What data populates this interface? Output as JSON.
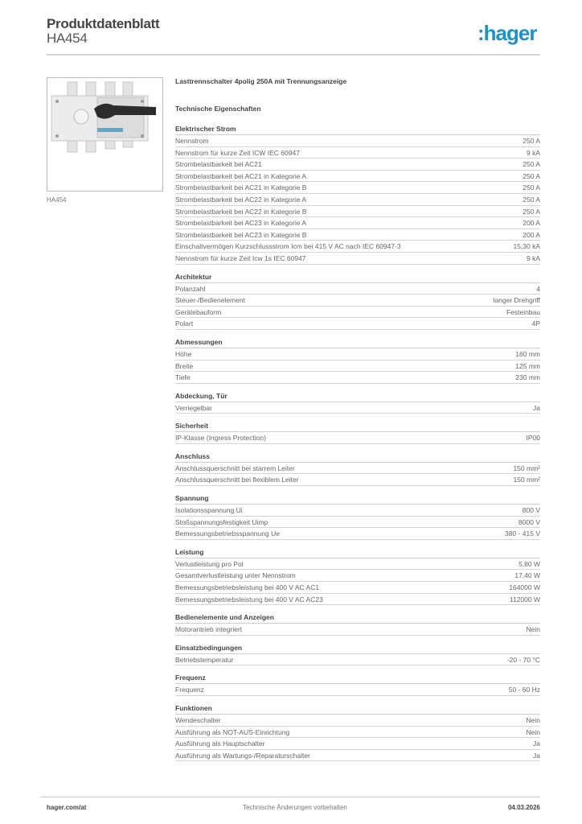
{
  "header": {
    "title": "Produktdatenblatt",
    "subtitle": "HA454",
    "logo": ":hager"
  },
  "product": {
    "image_caption": "HA454",
    "title": "Lasttrennschalter 4polig 250A mit Trennungsanzeige",
    "section_heading": "Technische Eigenschaften"
  },
  "sections": [
    {
      "title": "Elektrischer Strom",
      "rows": [
        {
          "label": "Nennstrom",
          "value": "250 A"
        },
        {
          "label": "Nennstrom für kurze Zeit ICW IEC 60947",
          "value": "9 kA"
        },
        {
          "label": "Strombelastbarkeit bei AC21",
          "value": "250 A"
        },
        {
          "label": "Strombelastbarkeit bei AC21 in Kategorie A",
          "value": "250 A"
        },
        {
          "label": "Strombelastbarkeit bei AC21 in Kategorie B",
          "value": "250 A"
        },
        {
          "label": "Strombelastbarkeit bei AC22 in Kategorie A",
          "value": "250 A"
        },
        {
          "label": "Strombelastbarkeit bei AC22 in Kategorie B",
          "value": "250 A"
        },
        {
          "label": "Strombelastbarkeit bei AC23 in Kategorie A",
          "value": "200 A"
        },
        {
          "label": "Strombelastbarkeit bei AC23 in Kategorie B",
          "value": "200 A"
        },
        {
          "label": "Einschaltvermögen Kurzschlussstrom Icm bei 415 V AC nach IEC 60947-3",
          "value": "15,30 kA"
        },
        {
          "label": "Nennstrom für kurze Zeit Icw 1s IEC 60947",
          "value": "9 kA"
        }
      ]
    },
    {
      "title": "Architektur",
      "rows": [
        {
          "label": "Polanzahl",
          "value": "4"
        },
        {
          "label": "Steuer-/Bedienelement",
          "value": "langer Drehgriff"
        },
        {
          "label": "Gerätebauform",
          "value": "Festeinbau"
        },
        {
          "label": "Polart",
          "value": "4P"
        }
      ]
    },
    {
      "title": "Abmessungen",
      "rows": [
        {
          "label": "Höhe",
          "value": "160 mm"
        },
        {
          "label": "Breite",
          "value": "125 mm"
        },
        {
          "label": "Tiefe",
          "value": "230 mm"
        }
      ]
    },
    {
      "title": "Abdeckung, Tür",
      "rows": [
        {
          "label": "Verriegelbar",
          "value": "Ja"
        }
      ]
    },
    {
      "title": "Sicherheit",
      "rows": [
        {
          "label": "IP-Klasse (Ingress Protection)",
          "value": "IP00"
        }
      ]
    },
    {
      "title": "Anschluss",
      "rows": [
        {
          "label": "Anschlussquerschnitt bei starrem Leiter",
          "value": "150 mm²"
        },
        {
          "label": "Anschlussquerschnitt bei flexiblem Leiter",
          "value": "150 mm²"
        }
      ]
    },
    {
      "title": "Spannung",
      "rows": [
        {
          "label": "Isolationsspannung Ui",
          "value": "800 V"
        },
        {
          "label": "Stoßspannungsfestigkeit Uimp",
          "value": "8000 V"
        },
        {
          "label": "Bemessungsbetriebsspannung Ue",
          "value": "380 - 415 V"
        }
      ]
    },
    {
      "title": "Leistung",
      "rows": [
        {
          "label": "Verlustleistung pro Pol",
          "value": "5,80 W"
        },
        {
          "label": "Gesamtverlustleistung unter Nennstrom",
          "value": "17,40 W"
        },
        {
          "label": "Bemessungsbetriebsleistung bei 400 V AC AC1",
          "value": "164000 W"
        },
        {
          "label": "Bemessungsbetriebsleistung bei 400 V AC AC23",
          "value": "112000 W"
        }
      ]
    },
    {
      "title": "Bedienelemente und Anzeigen",
      "rows": [
        {
          "label": "Motorantrieb integriert",
          "value": "Nein"
        }
      ]
    },
    {
      "title": "Einsatzbedingungen",
      "rows": [
        {
          "label": "Betriebstemperatur",
          "value": "-20 - 70 °C"
        }
      ]
    },
    {
      "title": "Frequenz",
      "rows": [
        {
          "label": "Frequenz",
          "value": "50 - 60 Hz"
        }
      ]
    },
    {
      "title": "Funktionen",
      "rows": [
        {
          "label": "Wendeschalter",
          "value": "Nein"
        },
        {
          "label": "Ausführung als NOT-AUS-Einrichtung",
          "value": "Nein"
        },
        {
          "label": "Ausführung als Hauptschalter",
          "value": "Ja"
        },
        {
          "label": "Ausführung als Wartungs-/Reparaturschalter",
          "value": "Ja"
        }
      ]
    }
  ],
  "footer": {
    "website": "hager.com/at",
    "disclaimer": "Technische Änderungen vorbehalten",
    "date": "04.03.2026"
  },
  "colors": {
    "brand": "#1a93c9"
  }
}
